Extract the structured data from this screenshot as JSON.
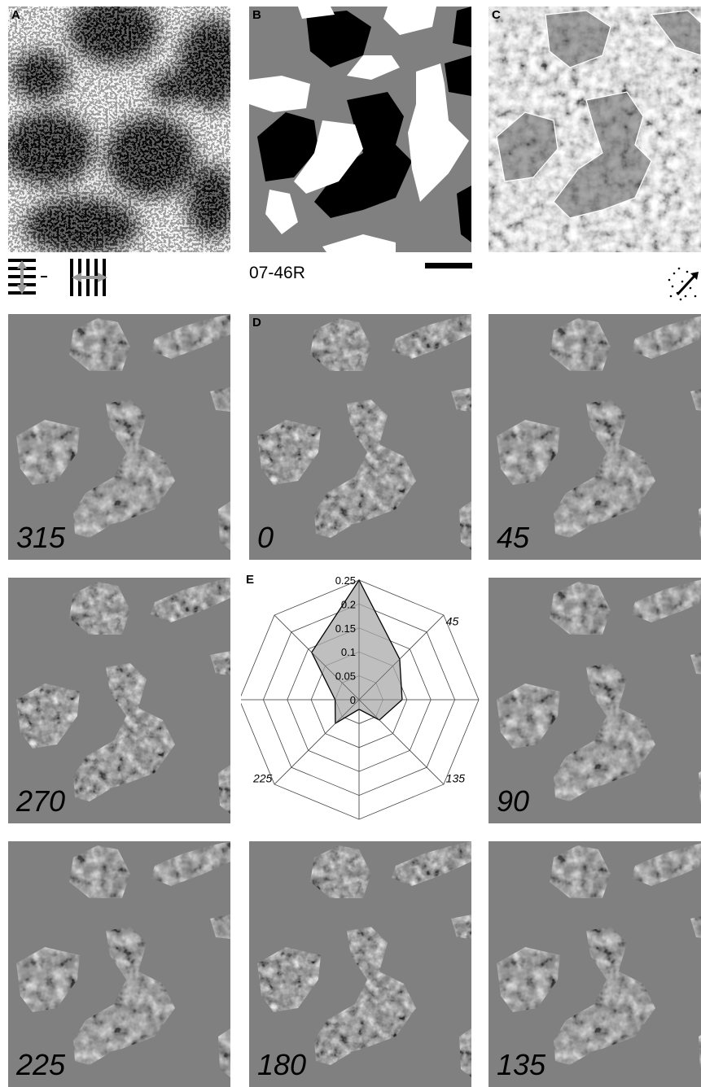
{
  "panels": {
    "a": {
      "letter": "A"
    },
    "b": {
      "letter": "B",
      "code": "07-46R"
    },
    "c": {
      "letter": "C"
    },
    "d": {
      "letter": "D"
    },
    "e": {
      "letter": "E"
    }
  },
  "icons": [
    "orientation-difference-icon",
    "motion-direction-icon",
    "scale-bar"
  ],
  "angle_panels": [
    "315",
    "0",
    "45",
    "270",
    "90",
    "225",
    "180",
    "135"
  ],
  "chart_data": {
    "type": "radar",
    "axis_ticks": [
      "0.25",
      "0.2",
      "0.15",
      "0.1",
      "0.05",
      "0"
    ],
    "direction_labels": [
      "45",
      "135",
      "225"
    ],
    "rmax": 0.25,
    "directions_deg": [
      0,
      45,
      90,
      135,
      180,
      225,
      270,
      315
    ],
    "values": [
      0.25,
      0.12,
      0.09,
      0.06,
      0.02,
      0.07,
      0.05,
      0.14
    ]
  }
}
